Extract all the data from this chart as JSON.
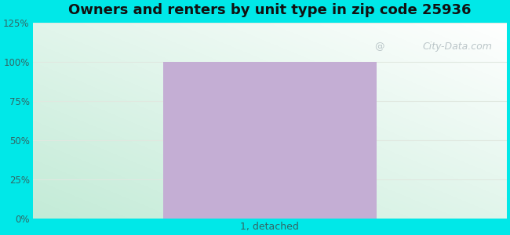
{
  "title": "Owners and renters by unit type in zip code 25936",
  "title_fontsize": 13,
  "categories": [
    "1, detached"
  ],
  "values": [
    100
  ],
  "bar_color": "#c4aed4",
  "bar_width": 0.45,
  "ylim": [
    0,
    125
  ],
  "yticks": [
    0,
    25,
    50,
    75,
    100,
    125
  ],
  "ytick_labels": [
    "0%",
    "25%",
    "50%",
    "75%",
    "100%",
    "125%"
  ],
  "bg_outer_color": "#00e8e8",
  "watermark_text": "City-Data.com",
  "watermark_color": "#b0bcc0",
  "grid_color": "#e0e8e0",
  "tick_color": "#336666",
  "title_color": "#111111"
}
